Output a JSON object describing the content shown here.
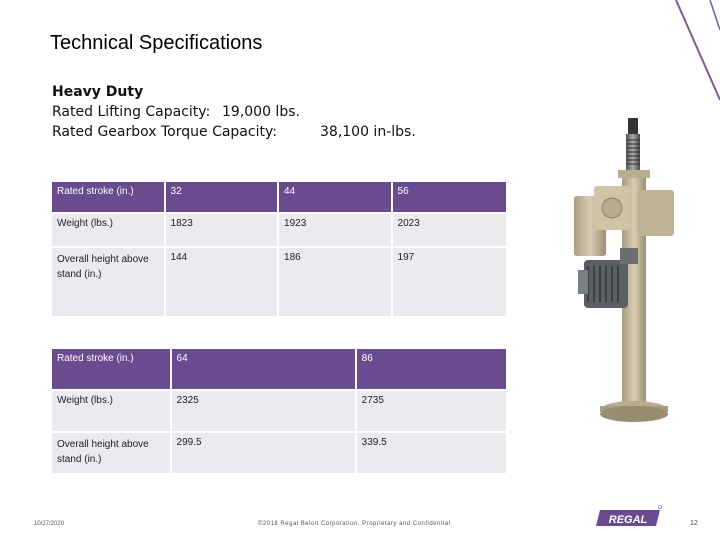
{
  "slide": {
    "title": "Technical Specifications",
    "spec": {
      "heading": "Heavy Duty",
      "lifting_label": "Rated Lifting Capacity:",
      "lifting_value": "19,000 lbs.",
      "torque_label": "Rated Gearbox Torque Capacity:",
      "torque_value": "38,100 in-lbs."
    },
    "table1": {
      "rows": [
        [
          "Rated stroke (in.)",
          "32",
          "44",
          "56"
        ],
        [
          "Weight (lbs.)",
          "1823",
          "1923",
          "2023"
        ],
        [
          "Overall height above stand (in.)",
          "144",
          "186",
          "197"
        ]
      ]
    },
    "table2": {
      "rows": [
        [
          "Rated stroke (in.)",
          "64",
          "86"
        ],
        [
          "Weight (lbs.)",
          "2325",
          "2735"
        ],
        [
          "Overall height above stand (in.)",
          "299.5",
          "339.5"
        ]
      ]
    },
    "footer": {
      "date": "10/27/2020",
      "copyright": "©2018 Regal Beloit Corporation, Proprietary and Confidential",
      "page": "12",
      "logo_text": "REGAL"
    },
    "colors": {
      "accent_purple": "#6b4b8f",
      "light_row": "#ece9ef",
      "actuator_tan": "#c9bda0"
    }
  }
}
